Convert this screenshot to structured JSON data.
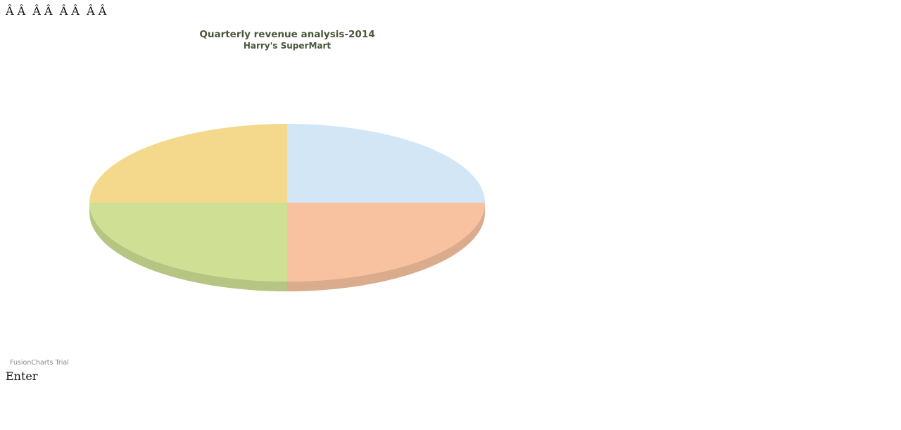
{
  "page": {
    "header_text": "Â Â  Â Â  Â Â  Â Â",
    "footer_text": "Enter",
    "watermark": "FusionCharts Trial"
  },
  "chart_data": {
    "type": "pie",
    "style": "3d",
    "title": "Quarterly revenue analysis-2014",
    "subtitle": "Harry's SuperMart",
    "slices": [
      {
        "value": 25,
        "color": "#d2e6f5"
      },
      {
        "value": 25,
        "color": "#f8c2a0"
      },
      {
        "value": 25,
        "color": "#cfe094"
      },
      {
        "value": 25,
        "color": "#f4d98c"
      }
    ],
    "start_angle_deg": -90,
    "direction": "clockwise"
  }
}
